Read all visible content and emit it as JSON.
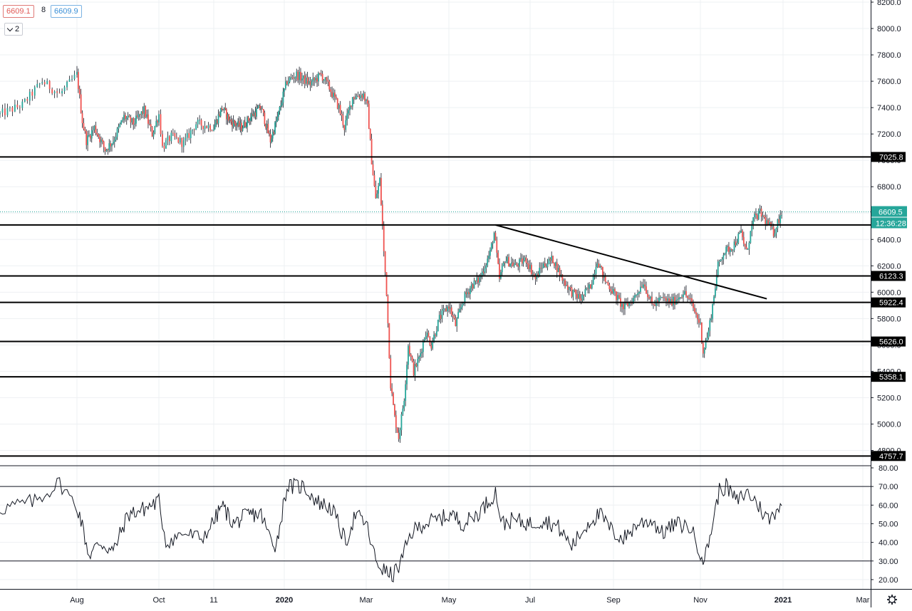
{
  "legend_boxes": {
    "bid": "6609.1",
    "separator": "8",
    "ask": "6609.9",
    "collapse_count": "2"
  },
  "badges": {
    "current_price": "6609.5",
    "countdown": "12:36:28"
  },
  "colors": {
    "up": "#26a69a",
    "down": "#ef5350",
    "grid": "#eef0f3",
    "axis_text": "#131722",
    "current_price": "#26a69a",
    "level_line": "#000000"
  },
  "settings_icon": "gear-icon",
  "chart_data": [
    {
      "type": "candlestick",
      "y_range": [
        4700,
        8200
      ],
      "y_ticks": [
        "8200.0",
        "8000.0",
        "7800.0",
        "7600.0",
        "7400.0",
        "7200.0",
        "7000.0",
        "6800.0",
        "6600.0",
        "6400.0",
        "6200.0",
        "6000.0",
        "5800.0",
        "5600.0",
        "5400.0",
        "5200.0",
        "5000.0",
        "4800.0"
      ],
      "x_ticks": [
        "Aug",
        "Oct",
        "11",
        "2020",
        "Mar",
        "May",
        "Jul",
        "Sep",
        "Nov",
        "2021",
        "Mar"
      ],
      "ohlc_path": [
        [
          "Jul 1 2019",
          7350
        ],
        [
          "Jul 10",
          7420
        ],
        [
          "Jul 18",
          7600
        ],
        [
          "Jul 25",
          7500
        ],
        [
          "Aug 1",
          7650
        ],
        [
          "Aug 5",
          7300
        ],
        [
          "Aug 8",
          7150
        ],
        [
          "Aug 14",
          7250
        ],
        [
          "Aug 22",
          7080
        ],
        [
          "Aug 28",
          7150
        ],
        [
          "Sep 5",
          7330
        ],
        [
          "Sep 12",
          7280
        ],
        [
          "Sep 20",
          7380
        ],
        [
          "Sep 26",
          7200
        ],
        [
          "Oct 1",
          7350
        ],
        [
          "Oct 3",
          7100
        ],
        [
          "Oct 8",
          7180
        ],
        [
          "Oct 15",
          7130
        ],
        [
          "Oct 22",
          7280
        ],
        [
          "Nov 1",
          7250
        ],
        [
          "Nov 8",
          7400
        ],
        [
          "Nov 15",
          7300
        ],
        [
          "Nov 25",
          7250
        ],
        [
          "Dec 5",
          7350
        ],
        [
          "Dec 12",
          7400
        ],
        [
          "Dec 20",
          7150
        ],
        [
          "Dec 27",
          7350
        ],
        [
          "Jan 3 2020",
          7600
        ],
        [
          "Jan 10",
          7650
        ],
        [
          "Jan 20",
          7580
        ],
        [
          "Jan 28",
          7650
        ],
        [
          "Feb 3",
          7550
        ],
        [
          "Feb 10",
          7400
        ],
        [
          "Feb 14",
          7250
        ],
        [
          "Feb 20",
          7480
        ],
        [
          "Feb 28",
          7500
        ],
        [
          "Mar 2",
          7400
        ],
        [
          "Mar 5",
          7000
        ],
        [
          "Mar 8",
          6700
        ],
        [
          "Mar 11",
          6850
        ],
        [
          "Mar 13",
          6500
        ],
        [
          "Mar 14",
          6300
        ],
        [
          "Mar 16",
          6000
        ],
        [
          "Mar 19",
          5300
        ],
        [
          "Mar 22",
          5050
        ],
        [
          "Mar 25",
          4900
        ],
        [
          "Mar 29",
          5200
        ],
        [
          "Apr 1",
          5600
        ],
        [
          "Apr 5",
          5400
        ],
        [
          "Apr 9",
          5500
        ],
        [
          "Apr 14",
          5700
        ],
        [
          "Apr 18",
          5600
        ],
        [
          "Apr 24",
          5800
        ],
        [
          "May 1",
          5900
        ],
        [
          "May 6",
          5750
        ],
        [
          "May 12",
          5950
        ],
        [
          "May 18",
          6050
        ],
        [
          "May 24",
          6100
        ],
        [
          "Jun 1",
          6300
        ],
        [
          "Jun 4",
          6450
        ],
        [
          "Jun 8",
          6100
        ],
        [
          "Jun 12",
          6250
        ],
        [
          "Jun 20",
          6200
        ],
        [
          "Jun 28",
          6250
        ],
        [
          "Jul 5",
          6100
        ],
        [
          "Jul 10",
          6200
        ],
        [
          "Jul 18",
          6250
        ],
        [
          "Jul 25",
          6100
        ],
        [
          "Aug 1",
          6000
        ],
        [
          "Aug 8",
          5950
        ],
        [
          "Aug 15",
          6050
        ],
        [
          "Aug 20",
          6250
        ],
        [
          "Aug 25",
          6100
        ],
        [
          "Sep 1",
          6000
        ],
        [
          "Sep 8",
          5880
        ],
        [
          "Sep 15",
          5950
        ],
        [
          "Sep 22",
          6080
        ],
        [
          "Sep 28",
          5900
        ],
        [
          "Oct 5",
          5950
        ],
        [
          "Oct 12",
          5920
        ],
        [
          "Oct 20",
          6000
        ],
        [
          "Oct 25",
          5930
        ],
        [
          "Nov 1",
          5750
        ],
        [
          "Nov 3",
          5550
        ],
        [
          "Nov 7",
          5700
        ],
        [
          "Nov 10",
          5900
        ],
        [
          "Nov 14",
          6200
        ],
        [
          "Nov 18",
          6300
        ],
        [
          "Nov 25",
          6350
        ],
        [
          "Dec 1",
          6450
        ],
        [
          "Dec 5",
          6300
        ],
        [
          "Dec 10",
          6550
        ],
        [
          "Dec 15",
          6600
        ],
        [
          "Dec 22",
          6500
        ],
        [
          "Dec 25",
          6450
        ],
        [
          "Dec 31",
          6609.5
        ]
      ],
      "horizontal_levels": [
        {
          "value": 7025.8,
          "label": "7025.8"
        },
        {
          "value": 6510,
          "label": ""
        },
        {
          "value": 6123.3,
          "label": "6123.3"
        },
        {
          "value": 5922.4,
          "label": "5922.4"
        },
        {
          "value": 5626.0,
          "label": "5626.0"
        },
        {
          "value": 5358.1,
          "label": "5358.1"
        },
        {
          "value": 4757.7,
          "label": "4757.7"
        }
      ],
      "trend_line": {
        "from": [
          "Jun 5 2020",
          6510
        ],
        "to": [
          "Dec 20 2020",
          5950
        ]
      },
      "current_price": 6609.5
    },
    {
      "type": "line",
      "y_range": [
        15,
        80
      ],
      "y_ticks": [
        "80.00",
        "70.00",
        "60.00",
        "50.00",
        "40.00",
        "30.00",
        "20.00"
      ],
      "levels": [
        70,
        30
      ],
      "points": [
        [
          "Jul 1 2019",
          58
        ],
        [
          "Jul 15",
          62
        ],
        [
          "Jul 25",
          72
        ],
        [
          "Aug 3",
          55
        ],
        [
          "Aug 10",
          33
        ],
        [
          "Aug 18",
          40
        ],
        [
          "Aug 28",
          35
        ],
        [
          "Sep 8",
          55
        ],
        [
          "Sep 20",
          58
        ],
        [
          "Oct 1",
          62
        ],
        [
          "Oct 5",
          40
        ],
        [
          "Oct 15",
          45
        ],
        [
          "Oct 25",
          42
        ],
        [
          "Nov 8",
          60
        ],
        [
          "Nov 18",
          50
        ],
        [
          "Dec 1",
          55
        ],
        [
          "Dec 12",
          55
        ],
        [
          "Dec 18",
          45
        ],
        [
          "Dec 25",
          38
        ],
        [
          "Jan 3 2020",
          70
        ],
        [
          "Jan 15",
          70
        ],
        [
          "Jan 25",
          62
        ],
        [
          "Feb 5",
          58
        ],
        [
          "Feb 15",
          40
        ],
        [
          "Feb 22",
          55
        ],
        [
          "Mar 1",
          50
        ],
        [
          "Mar 8",
          30
        ],
        [
          "Mar 14",
          25
        ],
        [
          "Mar 20",
          22
        ],
        [
          "Mar 26",
          28
        ],
        [
          "Apr 3",
          45
        ],
        [
          "Apr 12",
          50
        ],
        [
          "Apr 22",
          52
        ],
        [
          "May 3",
          55
        ],
        [
          "May 12",
          50
        ],
        [
          "May 22",
          55
        ],
        [
          "Jun 1",
          63
        ],
        [
          "Jun 5",
          67
        ],
        [
          "Jun 10",
          50
        ],
        [
          "Jun 18",
          52
        ],
        [
          "Jul 1",
          50
        ],
        [
          "Jul 12",
          52
        ],
        [
          "Jul 22",
          48
        ],
        [
          "Aug 1",
          38
        ],
        [
          "Aug 8",
          45
        ],
        [
          "Aug 15",
          52
        ],
        [
          "Aug 22",
          55
        ],
        [
          "Sep 1",
          45
        ],
        [
          "Sep 8",
          42
        ],
        [
          "Sep 18",
          50
        ],
        [
          "Sep 28",
          52
        ],
        [
          "Oct 5",
          45
        ],
        [
          "Oct 15",
          50
        ],
        [
          "Oct 25",
          48
        ],
        [
          "Nov 1",
          35
        ],
        [
          "Nov 4",
          30
        ],
        [
          "Nov 10",
          50
        ],
        [
          "Nov 15",
          68
        ],
        [
          "Nov 20",
          70
        ],
        [
          "Nov 28",
          62
        ],
        [
          "Dec 5",
          67
        ],
        [
          "Dec 12",
          62
        ],
        [
          "Dec 18",
          55
        ],
        [
          "Dec 22",
          52
        ],
        [
          "Dec 31",
          62
        ]
      ]
    }
  ]
}
